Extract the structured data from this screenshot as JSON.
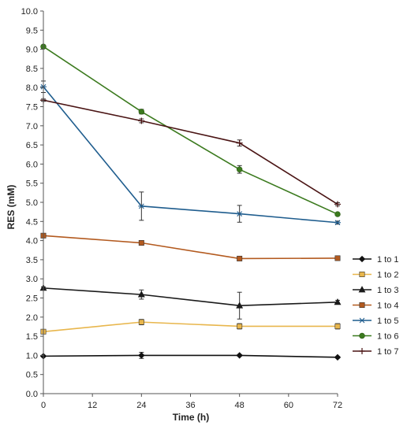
{
  "chart_data": {
    "type": "line",
    "title": "",
    "xlabel": "Time (h)",
    "ylabel": "RES (mM)",
    "x": [
      0,
      24,
      48,
      72
    ],
    "xlim": [
      0,
      72
    ],
    "xticks": [
      0,
      12,
      24,
      36,
      48,
      60,
      72
    ],
    "ylim": [
      0,
      10
    ],
    "yticks": [
      0.0,
      0.5,
      1.0,
      1.5,
      2.0,
      2.5,
      3.0,
      3.5,
      4.0,
      4.5,
      5.0,
      5.5,
      6.0,
      6.5,
      7.0,
      7.5,
      8.0,
      8.5,
      9.0,
      9.5,
      10.0
    ],
    "grid": false,
    "legend_position": "right",
    "series": [
      {
        "name": "1 to 1",
        "values": [
          0.98,
          1.0,
          1.0,
          0.95
        ],
        "errors": [
          0.02,
          0.08,
          0.02,
          0.02
        ],
        "color": "#111111",
        "marker": "diamond"
      },
      {
        "name": "1 to 2",
        "values": [
          1.62,
          1.87,
          1.76,
          1.76
        ],
        "errors": [
          0.05,
          0.07,
          0.07,
          0.07
        ],
        "color": "#e8b64c",
        "marker": "square"
      },
      {
        "name": "1 to 3",
        "values": [
          2.76,
          2.59,
          2.3,
          2.39
        ],
        "errors": [
          0.03,
          0.12,
          0.35,
          0.05
        ],
        "color": "#1a1a1a",
        "marker": "triangle"
      },
      {
        "name": "1 to 4",
        "values": [
          4.13,
          3.94,
          3.53,
          3.54
        ],
        "errors": [
          0.03,
          0.03,
          0.03,
          0.03
        ],
        "color": "#b35a1f",
        "marker": "square"
      },
      {
        "name": "1 to 5",
        "values": [
          8.02,
          4.9,
          4.7,
          4.47
        ],
        "errors": [
          0.15,
          0.37,
          0.22,
          0.04
        ],
        "color": "#1f5d8e",
        "marker": "asterisk"
      },
      {
        "name": "1 to 6",
        "values": [
          9.07,
          7.37,
          5.86,
          4.69
        ],
        "errors": [
          0.04,
          0.06,
          0.1,
          0.03
        ],
        "color": "#3b7a1e",
        "marker": "circle"
      },
      {
        "name": "1 to 7",
        "values": [
          7.67,
          7.13,
          6.55,
          4.95
        ],
        "errors": [
          0.03,
          0.05,
          0.08,
          0.04
        ],
        "color": "#4a1414",
        "marker": "plus"
      }
    ]
  }
}
